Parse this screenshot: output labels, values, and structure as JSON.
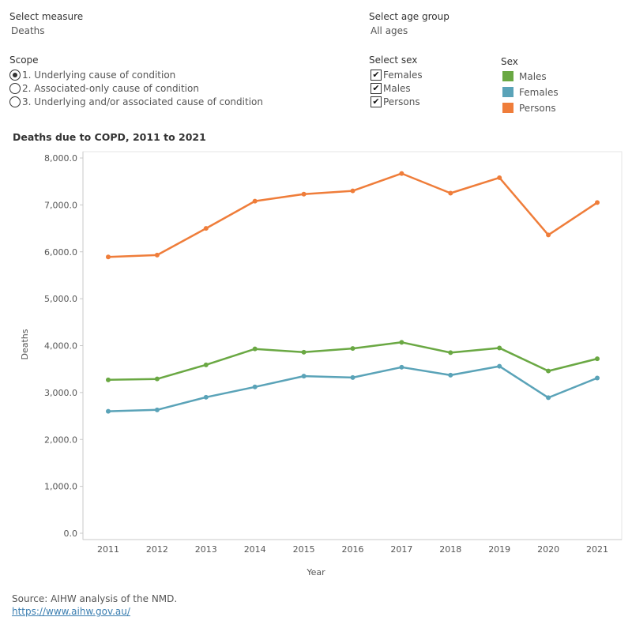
{
  "filters": {
    "measure": {
      "label": "Select measure",
      "value": "Deaths"
    },
    "age_group": {
      "label": "Select age group",
      "value": "All ages"
    }
  },
  "scope": {
    "label": "Scope",
    "options": [
      {
        "label": "1. Underlying cause of condition",
        "selected": true
      },
      {
        "label": "2. Associated-only cause of condition",
        "selected": false
      },
      {
        "label": "3. Underlying and/or associated cause of condition",
        "selected": false
      }
    ]
  },
  "select_sex": {
    "label": "Select sex",
    "options": [
      {
        "label": "Females",
        "checked": true
      },
      {
        "label": "Males",
        "checked": true
      },
      {
        "label": "Persons",
        "checked": true
      }
    ]
  },
  "legend": {
    "title": "Sex",
    "items": [
      {
        "label": "Males",
        "color": "#6aa843"
      },
      {
        "label": "Females",
        "color": "#5aa3b8"
      },
      {
        "label": "Persons",
        "color": "#ef7d3a"
      }
    ]
  },
  "chart_data": {
    "type": "line",
    "title": "Deaths due to COPD, 2011 to 2021",
    "xlabel": "Year",
    "ylabel": "Deaths",
    "x": [
      2011,
      2012,
      2013,
      2014,
      2015,
      2016,
      2017,
      2018,
      2019,
      2020,
      2021
    ],
    "ylim": [
      0,
      8000
    ],
    "yticks": [
      "0.0",
      "1,000.0",
      "2,000.0",
      "3,000.0",
      "4,000.0",
      "5,000.0",
      "6,000.0",
      "7,000.0",
      "8,000.0"
    ],
    "grid": false,
    "series": [
      {
        "name": "Persons",
        "color": "#ef7d3a",
        "values": [
          5890,
          5930,
          6500,
          7080,
          7230,
          7300,
          7670,
          7250,
          7580,
          6360,
          7050
        ]
      },
      {
        "name": "Males",
        "color": "#6aa843",
        "values": [
          3270,
          3290,
          3590,
          3930,
          3860,
          3940,
          4070,
          3850,
          3950,
          3460,
          3720
        ]
      },
      {
        "name": "Females",
        "color": "#5aa3b8",
        "values": [
          2600,
          2630,
          2900,
          3120,
          3350,
          3320,
          3540,
          3370,
          3560,
          2890,
          3310
        ]
      }
    ]
  },
  "footer": {
    "source": "Source: AIHW analysis of the NMD.",
    "link": "https://www.aihw.gov.au/"
  }
}
